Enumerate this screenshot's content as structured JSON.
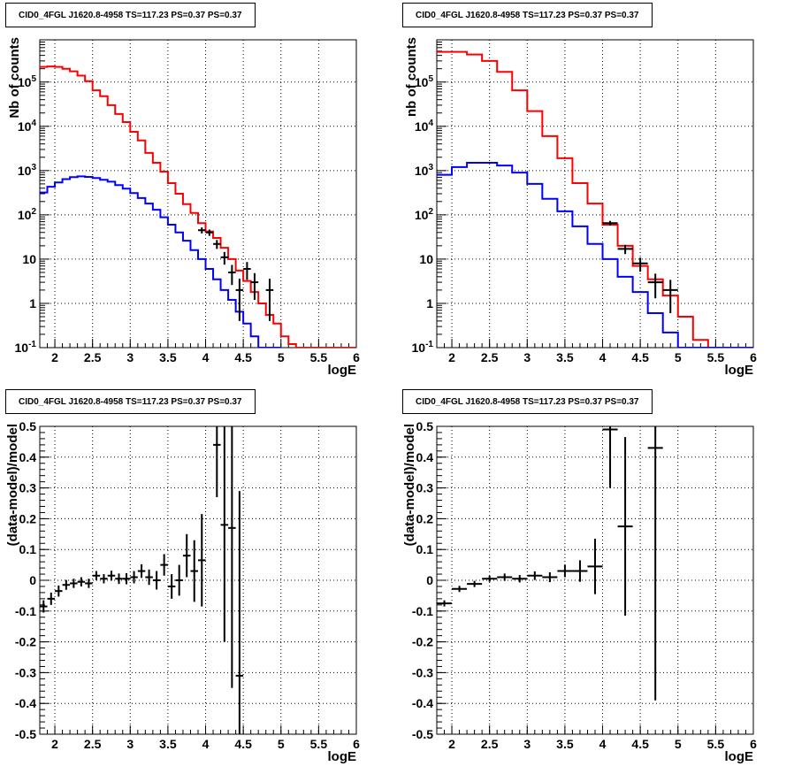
{
  "chart_data": [
    {
      "type": "line",
      "title": "CID0_4FGL J1620.8-4958 TS=117.23 PS=0.37 PS=0.37",
      "xlabel": "logE",
      "ylabel": "Nb of counts",
      "xlim": [
        1.8,
        6.0
      ],
      "ylim": [
        0.1,
        900000
      ],
      "yscale": "log",
      "grid": true,
      "x_ticks": [
        "2",
        "2.5",
        "3",
        "3.5",
        "4",
        "4.5",
        "5",
        "5.5",
        "6"
      ],
      "y_ticks": [
        "10^{-1}",
        "1",
        "10",
        "10^{2}",
        "10^{3}",
        "10^{4}",
        "10^{5}"
      ],
      "bin_width": 0.1,
      "series": [
        {
          "color": "#ff0000",
          "kind": "hist",
          "x": [
            1.8,
            1.9,
            2.0,
            2.1,
            2.2,
            2.3,
            2.4,
            2.5,
            2.6,
            2.7,
            2.8,
            2.9,
            3.0,
            3.1,
            3.2,
            3.3,
            3.4,
            3.5,
            3.6,
            3.7,
            3.8,
            3.9,
            4.0,
            4.1,
            4.2,
            4.3,
            4.4,
            4.5,
            4.6,
            4.7,
            4.8,
            4.9,
            5.0,
            5.1,
            5.2,
            5.3,
            5.4,
            5.5,
            5.6,
            5.7,
            5.8,
            5.9
          ],
          "y": [
            220000,
            225000,
            220000,
            200000,
            175000,
            140000,
            105000,
            65000,
            48000,
            30000,
            19000,
            12500,
            7500,
            4800,
            2500,
            1500,
            950,
            520,
            300,
            175,
            110,
            65,
            42,
            30,
            18,
            10,
            5.5,
            3.2,
            1.8,
            1.0,
            0.55,
            0.35,
            0.18,
            0.12,
            0.1,
            0.1,
            0.1,
            0.1,
            0.1,
            0.1,
            0.1,
            0.1
          ]
        },
        {
          "color": "#0000ff",
          "kind": "hist",
          "x": [
            1.8,
            1.9,
            2.0,
            2.1,
            2.2,
            2.3,
            2.4,
            2.5,
            2.6,
            2.7,
            2.8,
            2.9,
            3.0,
            3.1,
            3.2,
            3.3,
            3.4,
            3.5,
            3.6,
            3.7,
            3.8,
            3.9,
            4.0,
            4.1,
            4.2,
            4.3,
            4.4,
            4.5,
            4.6,
            4.7,
            4.8,
            4.9
          ],
          "y": [
            320,
            430,
            540,
            640,
            710,
            740,
            720,
            680,
            620,
            560,
            470,
            390,
            310,
            240,
            180,
            130,
            88,
            60,
            40,
            26,
            16,
            10,
            6,
            3.5,
            2,
            1.2,
            0.65,
            0.35,
            0.18,
            0.1,
            0.1,
            0.1
          ]
        },
        {
          "color": "#000000",
          "kind": "points",
          "x": [
            3.95,
            4.05,
            4.15,
            4.25,
            4.35,
            4.45,
            4.55,
            4.65,
            4.85
          ],
          "y": [
            45,
            40,
            22,
            11,
            5,
            2,
            6,
            3,
            2
          ],
          "yerr": [
            7,
            6.5,
            5,
            3.5,
            2.4,
            1.6,
            2.6,
            1.8,
            1.6
          ]
        }
      ]
    },
    {
      "type": "line",
      "title": "CID0_4FGL J1620.8-4958 TS=117.23 PS=0.37 PS=0.37",
      "xlabel": "logE",
      "ylabel": "nb of counts",
      "xlim": [
        1.8,
        6.0
      ],
      "ylim": [
        0.1,
        900000
      ],
      "yscale": "log",
      "grid": true,
      "x_ticks": [
        "2",
        "2.5",
        "3",
        "3.5",
        "4",
        "4.5",
        "5",
        "5.5",
        "6"
      ],
      "y_ticks": [
        "10^{-1}",
        "1",
        "10",
        "10^{2}",
        "10^{3}",
        "10^{4}",
        "10^{5}"
      ],
      "bin_width": 0.2,
      "series": [
        {
          "color": "#ff0000",
          "kind": "hist",
          "x": [
            1.8,
            2.0,
            2.2,
            2.4,
            2.6,
            2.8,
            3.0,
            3.2,
            3.4,
            3.6,
            3.8,
            4.0,
            4.2,
            4.4,
            4.6,
            4.8,
            5.0,
            5.2,
            5.4,
            5.6,
            5.8
          ],
          "y": [
            480000,
            480000,
            420000,
            300000,
            170000,
            65000,
            22000,
            6000,
            1900,
            520,
            180,
            60,
            20,
            7,
            3.5,
            1.5,
            0.5,
            0.15,
            0.1,
            0.1,
            0.1
          ]
        },
        {
          "color": "#0000ff",
          "kind": "hist",
          "x": [
            1.8,
            2.0,
            2.2,
            2.4,
            2.6,
            2.8,
            3.0,
            3.2,
            3.4,
            3.6,
            3.8,
            4.0,
            4.2,
            4.4,
            4.6,
            4.8,
            5.0,
            5.2,
            5.4,
            5.6,
            5.8
          ],
          "y": [
            800,
            1200,
            1500,
            1500,
            1300,
            900,
            500,
            230,
            120,
            55,
            22,
            10,
            4,
            1.8,
            0.6,
            0.22,
            0.1,
            0.1,
            0.1,
            0.1,
            0.1
          ]
        },
        {
          "color": "#000000",
          "kind": "points",
          "x": [
            4.1,
            4.3,
            4.5,
            4.7,
            4.9
          ],
          "y": [
            65,
            17,
            8,
            3,
            2
          ],
          "yerr": [
            8,
            4,
            2.8,
            1.7,
            1.4
          ]
        }
      ]
    },
    {
      "type": "scatter",
      "title": "CID0_4FGL J1620.8-4958 TS=117.23 PS=0.37 PS=0.37",
      "xlabel": "logE",
      "ylabel": "(data-model)/model",
      "xlim": [
        1.8,
        6.0
      ],
      "ylim": [
        -0.5,
        0.5
      ],
      "grid": true,
      "x_ticks": [
        "2",
        "2.5",
        "3",
        "3.5",
        "4",
        "4.5",
        "5",
        "5.5",
        "6"
      ],
      "y_ticks": [
        "-0.5",
        "-0.4",
        "-0.3",
        "-0.2",
        "-0.1",
        "0",
        "0.1",
        "0.2",
        "0.3",
        "0.4",
        "0.5"
      ],
      "bin_width": 0.1,
      "series": [
        {
          "color": "#000000",
          "kind": "points",
          "x": [
            1.85,
            1.95,
            2.05,
            2.15,
            2.25,
            2.35,
            2.45,
            2.55,
            2.65,
            2.75,
            2.85,
            2.95,
            3.05,
            3.15,
            3.25,
            3.35,
            3.45,
            3.55,
            3.65,
            3.75,
            3.85,
            3.95,
            4.15,
            4.25,
            4.35,
            4.45
          ],
          "y": [
            -0.085,
            -0.06,
            -0.035,
            -0.015,
            -0.01,
            -0.005,
            -0.01,
            0.015,
            0.005,
            0.015,
            0.005,
            0.005,
            0.01,
            0.03,
            0.01,
            0.0,
            0.05,
            -0.02,
            0.0,
            0.08,
            0.03,
            0.065,
            0.44,
            0.18,
            0.17,
            -0.31
          ],
          "yerr": [
            0.02,
            0.02,
            0.018,
            0.016,
            0.015,
            0.015,
            0.015,
            0.015,
            0.015,
            0.016,
            0.017,
            0.018,
            0.02,
            0.022,
            0.025,
            0.03,
            0.035,
            0.04,
            0.05,
            0.07,
            0.1,
            0.15,
            0.17,
            0.38,
            0.52,
            0.6
          ]
        }
      ]
    },
    {
      "type": "scatter",
      "title": "CID0_4FGL J1620.8-4958 TS=117.23 PS=0.37 PS=0.37",
      "xlabel": "logE",
      "ylabel": "(data-model)/model",
      "xlim": [
        1.8,
        6.0
      ],
      "ylim": [
        -0.5,
        0.5
      ],
      "grid": true,
      "x_ticks": [
        "2",
        "2.5",
        "3",
        "3.5",
        "4",
        "4.5",
        "5",
        "5.5",
        "6"
      ],
      "y_ticks": [
        "-0.5",
        "-0.4",
        "-0.3",
        "-0.2",
        "-0.1",
        "0",
        "0.1",
        "0.2",
        "0.3",
        "0.4",
        "0.5"
      ],
      "bin_width": 0.2,
      "series": [
        {
          "color": "#000000",
          "kind": "points",
          "x": [
            1.9,
            2.1,
            2.3,
            2.5,
            2.7,
            2.9,
            3.1,
            3.3,
            3.5,
            3.7,
            3.9,
            4.1,
            4.3,
            4.7
          ],
          "y": [
            -0.075,
            -0.028,
            -0.012,
            0.005,
            0.01,
            0.005,
            0.015,
            0.01,
            0.03,
            0.03,
            0.045,
            0.49,
            0.175,
            0.43
          ],
          "yerr": [
            0.01,
            0.01,
            0.01,
            0.01,
            0.012,
            0.012,
            0.014,
            0.016,
            0.02,
            0.035,
            0.09,
            0.19,
            0.29,
            0.82
          ]
        }
      ]
    }
  ]
}
